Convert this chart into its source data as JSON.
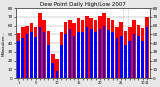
{
  "title": "Dew Point Daily High/Low 2007",
  "ylabel_left": "Milwaukee...",
  "high_values": [
    52,
    58,
    60,
    63,
    58,
    74,
    67,
    54,
    28,
    22,
    53,
    64,
    67,
    63,
    69,
    67,
    71,
    69,
    67,
    71,
    74,
    69,
    67,
    59,
    64,
    54,
    58,
    67,
    61,
    57,
    70
  ],
  "low_values": [
    42,
    46,
    50,
    53,
    47,
    58,
    53,
    38,
    17,
    8,
    38,
    50,
    56,
    48,
    53,
    53,
    58,
    56,
    53,
    56,
    60,
    55,
    53,
    46,
    48,
    38,
    42,
    50,
    48,
    42,
    58
  ],
  "bar_color_high": "#FF0000",
  "bar_color_low": "#0000FF",
  "background_color": "#e8e8e8",
  "plot_bg_color": "#ffffff",
  "ylim": [
    0,
    80
  ],
  "yticks_left": [
    0,
    10,
    20,
    30,
    40,
    50,
    60,
    70,
    80
  ],
  "yticks_right": [
    0,
    10,
    20,
    30,
    40,
    50,
    60,
    70,
    80
  ],
  "grid_color": "#999999",
  "n_bars": 31,
  "title_fontsize": 4.0,
  "tick_fontsize": 3.0,
  "ylabel_fontsize": 3.0
}
